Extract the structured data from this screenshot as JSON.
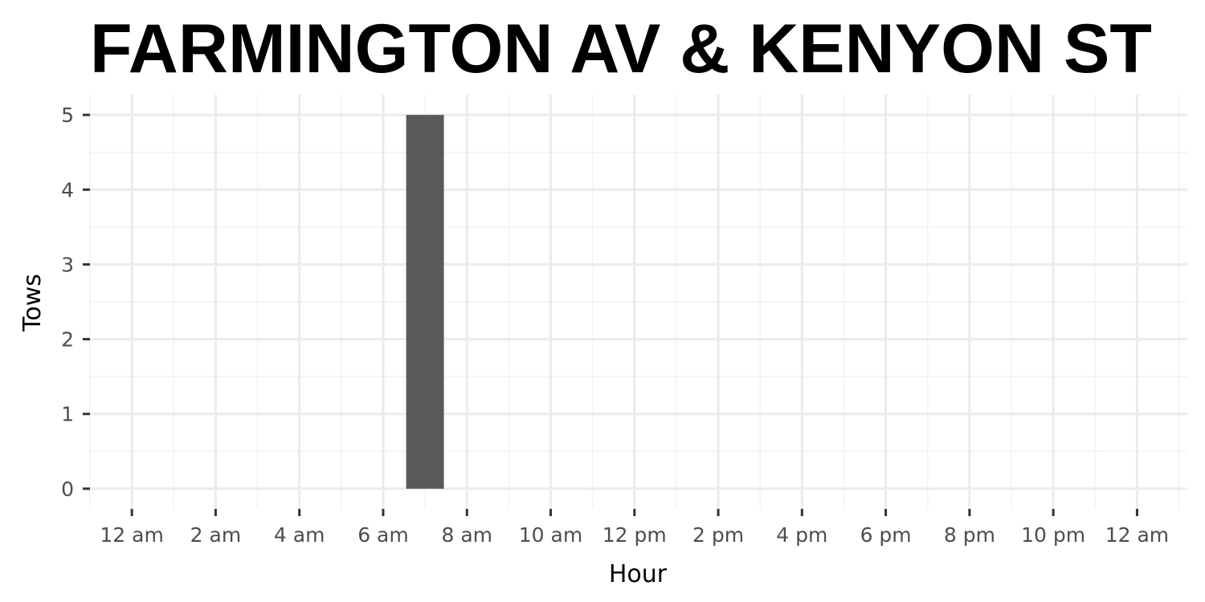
{
  "chart_data": {
    "type": "bar",
    "title": "FARMINGTON AV & KENYON ST",
    "xlabel": "Hour",
    "ylabel": "Tows",
    "x_range": [
      -1,
      25.2
    ],
    "ylim": [
      -0.27,
      5.27
    ],
    "x_ticks": [
      {
        "value": 0,
        "label": "12 am"
      },
      {
        "value": 2,
        "label": "2 am"
      },
      {
        "value": 4,
        "label": "4 am"
      },
      {
        "value": 6,
        "label": "6 am"
      },
      {
        "value": 8,
        "label": "8 am"
      },
      {
        "value": 10,
        "label": "10 am"
      },
      {
        "value": 12,
        "label": "12 pm"
      },
      {
        "value": 14,
        "label": "2 pm"
      },
      {
        "value": 16,
        "label": "4 pm"
      },
      {
        "value": 18,
        "label": "6 pm"
      },
      {
        "value": 20,
        "label": "8 pm"
      },
      {
        "value": 22,
        "label": "10 pm"
      },
      {
        "value": 24,
        "label": "12 am"
      }
    ],
    "y_ticks": [
      {
        "value": 0,
        "label": "0"
      },
      {
        "value": 1,
        "label": "1"
      },
      {
        "value": 2,
        "label": "2"
      },
      {
        "value": 3,
        "label": "3"
      },
      {
        "value": 4,
        "label": "4"
      },
      {
        "value": 5,
        "label": "5"
      }
    ],
    "bars": [
      {
        "x": 7,
        "value": 5
      }
    ],
    "bar_width_hours": 0.9,
    "grid": true,
    "legend": "none",
    "colors": {
      "bar": "#595959",
      "grid_major": "#ebebeb",
      "grid_minor": "#f2f2f2",
      "tick": "#333333",
      "tick_label": "#4d4d4d",
      "background": "#ffffff"
    }
  }
}
